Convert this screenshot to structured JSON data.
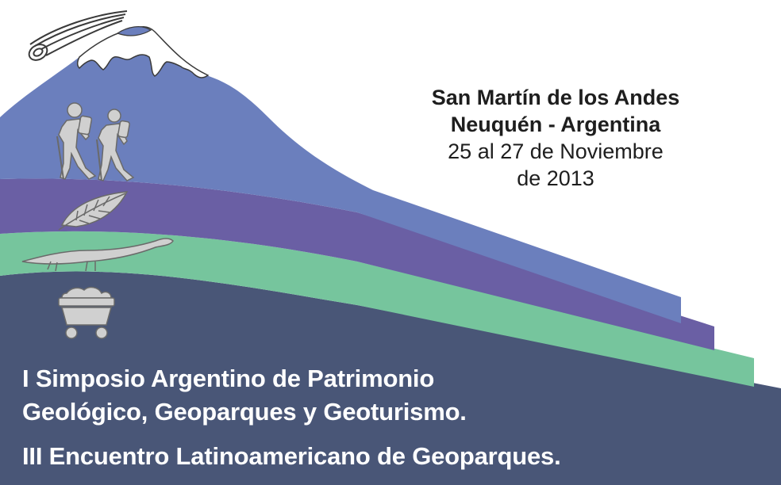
{
  "event": {
    "location_line1": "San Martín de los Andes",
    "location_line2": "Neuquén - Argentina",
    "date_line1": "25 al 27 de Noviembre",
    "date_line2": "de 2013"
  },
  "titles": {
    "line1": "I Simposio Argentino de Patrimonio",
    "line2": "Geológico, Geoparques y Geoturismo.",
    "line3": "III Encuentro Latinoamericano de Geoparques."
  },
  "colors": {
    "mountain": "#6b7fbd",
    "purple_layer": "#6a5fa4",
    "green_layer": "#76c59d",
    "base_layer": "#495677",
    "snow": "#ffffff",
    "icons": "#c8c8c8"
  },
  "icons": [
    "comet-icon",
    "volcano-snowcap",
    "hikers-icon",
    "leaf-fossil-icon",
    "dinosaur-fossil-icon",
    "mine-cart-icon"
  ]
}
